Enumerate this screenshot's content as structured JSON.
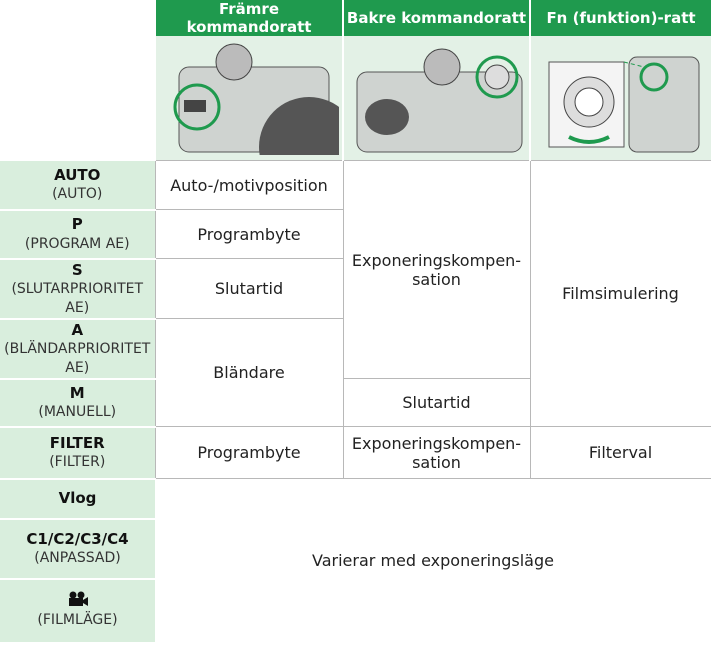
{
  "header": {
    "columns": [
      "Främre kommandoratt",
      "Bakre kommandoratt",
      "Fn (funktion)-ratt"
    ]
  },
  "modes": [
    {
      "name": "AUTO",
      "label": "(AUTO)"
    },
    {
      "name": "P",
      "label": "(PROGRAM AE)"
    },
    {
      "name": "S",
      "label": "(SLUTARPRIORITET AE)"
    },
    {
      "name": "A",
      "label": "(BLÄNDARPRIORITET AE)"
    },
    {
      "name": "M",
      "label": "(MANUELL)"
    },
    {
      "name": "FILTER",
      "label": "(FILTER)"
    },
    {
      "name": "Vlog"
    },
    {
      "name": "C1/C2/C3/C4",
      "label": "(ANPASSAD)"
    },
    {
      "label": "(FILMLÄGE)"
    }
  ],
  "cells": {
    "auto_front": "Auto-/motivposition",
    "program_front": "Programbyte",
    "shutter_front": "Slutartid",
    "aperture_front": "Bländare",
    "exposure_rear": "Exponeringskompen­sation",
    "shutter_rear": "Slutartid",
    "film_fn": "Filmsimulering",
    "filter_front": "Programbyte",
    "filter_rear": "Exponeringskompen­sation",
    "filter_fn": "Filterval",
    "varies": "Varierar med exponeringsläge"
  }
}
